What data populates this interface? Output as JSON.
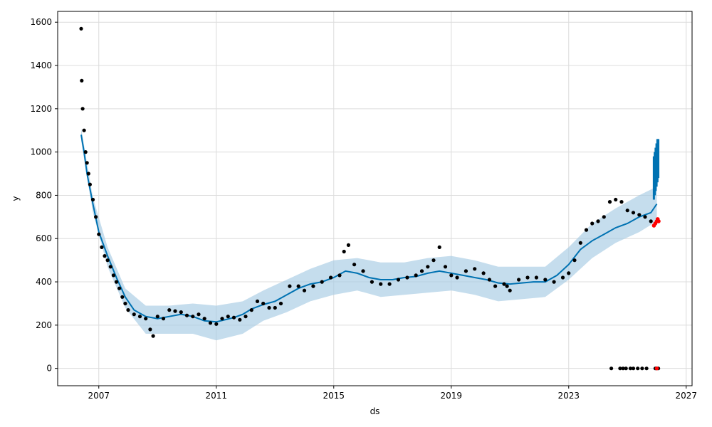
{
  "chart_data": {
    "type": "line",
    "title": "",
    "xlabel": "ds",
    "ylabel": "y",
    "xlim": [
      2005.6,
      2027.2
    ],
    "ylim": [
      -80,
      1650
    ],
    "x_ticks": [
      "2007",
      "2011",
      "2015",
      "2019",
      "2023",
      "2027"
    ],
    "y_ticks": [
      "0",
      "200",
      "400",
      "600",
      "800",
      "1000",
      "1200",
      "1400",
      "1600"
    ],
    "grid": true,
    "legend": "none",
    "colors": {
      "observed": "#000000",
      "forecast": "#0072B2",
      "interval": "#a6cbe3",
      "recent_actual": "#ff0000"
    },
    "series": [
      {
        "kind": "forecast_line",
        "x": [
          2006.4,
          2006.5,
          2006.6,
          2006.8,
          2007.0,
          2007.3,
          2007.6,
          2007.9,
          2008.2,
          2008.6,
          2009.0,
          2009.4,
          2009.8,
          2010.2,
          2010.6,
          2011.0,
          2011.3,
          2011.6,
          2011.9,
          2012.2,
          2012.6,
          2013.0,
          2013.4,
          2013.8,
          2014.2,
          2014.6,
          2015.0,
          2015.4,
          2015.8,
          2016.2,
          2016.6,
          2017.0,
          2017.4,
          2017.8,
          2018.2,
          2018.6,
          2019.0,
          2019.4,
          2019.8,
          2020.2,
          2020.6,
          2021.0,
          2021.4,
          2021.8,
          2022.2,
          2022.6,
          2023.0,
          2023.4,
          2023.8,
          2024.2,
          2024.6,
          2025.0,
          2025.4,
          2025.8,
          2026.0
        ],
        "y": [
          1080,
          1000,
          900,
          760,
          630,
          520,
          420,
          330,
          270,
          240,
          230,
          240,
          250,
          240,
          220,
          215,
          225,
          235,
          250,
          275,
          295,
          310,
          340,
          370,
          390,
          400,
          420,
          450,
          440,
          420,
          410,
          410,
          420,
          425,
          440,
          450,
          440,
          430,
          420,
          410,
          395,
          390,
          395,
          400,
          400,
          430,
          480,
          550,
          590,
          620,
          650,
          670,
          700,
          720,
          760
        ]
      },
      {
        "kind": "forecast_upper",
        "x": [
          2006.4,
          2006.8,
          2007.3,
          2007.9,
          2008.6,
          2009.4,
          2010.2,
          2011.0,
          2011.9,
          2012.6,
          2013.4,
          2014.2,
          2015.0,
          2015.8,
          2016.6,
          2017.4,
          2018.2,
          2019.0,
          2019.8,
          2020.6,
          2021.4,
          2022.2,
          2023.0,
          2023.8,
          2024.6,
          2025.4,
          2026.0
        ],
        "y": [
          1110,
          790,
          560,
          370,
          290,
          290,
          300,
          290,
          310,
          360,
          410,
          460,
          500,
          510,
          490,
          490,
          510,
          520,
          500,
          470,
          470,
          470,
          560,
          670,
          740,
          800,
          840
        ]
      },
      {
        "kind": "forecast_lower",
        "x": [
          2006.4,
          2006.8,
          2007.3,
          2007.9,
          2008.6,
          2009.4,
          2010.2,
          2011.0,
          2011.9,
          2012.6,
          2013.4,
          2014.2,
          2015.0,
          2015.8,
          2016.6,
          2017.4,
          2018.2,
          2019.0,
          2019.8,
          2020.6,
          2021.4,
          2022.2,
          2023.0,
          2023.8,
          2024.6,
          2025.4,
          2026.0
        ],
        "y": [
          1050,
          720,
          470,
          280,
          160,
          160,
          160,
          130,
          160,
          220,
          260,
          310,
          340,
          360,
          330,
          340,
          350,
          360,
          340,
          310,
          320,
          330,
          410,
          510,
          580,
          630,
          680
        ]
      },
      {
        "kind": "observed_points",
        "x": [
          2006.4,
          2006.42,
          2006.45,
          2006.5,
          2006.55,
          2006.6,
          2006.65,
          2006.7,
          2006.8,
          2006.9,
          2007.0,
          2007.1,
          2007.2,
          2007.3,
          2007.4,
          2007.5,
          2007.6,
          2007.7,
          2007.8,
          2007.9,
          2008.0,
          2008.2,
          2008.4,
          2008.6,
          2008.75,
          2008.85,
          2009.0,
          2009.2,
          2009.4,
          2009.6,
          2009.8,
          2010.0,
          2010.2,
          2010.4,
          2010.6,
          2010.8,
          2011.0,
          2011.2,
          2011.4,
          2011.6,
          2011.8,
          2012.0,
          2012.2,
          2012.4,
          2012.6,
          2012.8,
          2013.0,
          2013.2,
          2013.5,
          2013.8,
          2014.0,
          2014.3,
          2014.6,
          2014.9,
          2015.2,
          2015.35,
          2015.5,
          2015.7,
          2016.0,
          2016.3,
          2016.6,
          2016.9,
          2017.2,
          2017.5,
          2017.8,
          2018.0,
          2018.2,
          2018.4,
          2018.6,
          2018.8,
          2019.0,
          2019.2,
          2019.5,
          2019.8,
          2020.1,
          2020.3,
          2020.5,
          2020.8,
          2020.9,
          2021.0,
          2021.3,
          2021.6,
          2021.9,
          2022.2,
          2022.5,
          2022.8,
          2023.0,
          2023.2,
          2023.4,
          2023.6,
          2023.8,
          2024.0,
          2024.2,
          2024.4,
          2024.6,
          2024.8,
          2025.0,
          2025.2,
          2025.4,
          2025.6,
          2025.8,
          2024.45,
          2024.75,
          2024.85,
          2024.95,
          2025.1,
          2025.2,
          2025.35,
          2025.5,
          2025.65,
          2025.95,
          2026.05
        ],
        "y": [
          1570,
          1330,
          1200,
          1100,
          1000,
          950,
          900,
          850,
          780,
          700,
          620,
          560,
          520,
          500,
          470,
          430,
          400,
          370,
          330,
          300,
          270,
          250,
          240,
          230,
          180,
          150,
          240,
          230,
          270,
          265,
          260,
          245,
          240,
          250,
          230,
          210,
          205,
          230,
          240,
          235,
          225,
          240,
          270,
          310,
          300,
          280,
          280,
          300,
          380,
          380,
          360,
          380,
          400,
          420,
          430,
          540,
          570,
          480,
          450,
          400,
          390,
          390,
          410,
          420,
          430,
          450,
          470,
          500,
          560,
          470,
          430,
          420,
          450,
          460,
          440,
          410,
          380,
          390,
          380,
          360,
          410,
          420,
          420,
          410,
          400,
          420,
          440,
          500,
          580,
          640,
          670,
          680,
          700,
          770,
          780,
          770,
          730,
          720,
          710,
          700,
          680,
          0,
          0,
          0,
          0,
          0,
          0,
          0,
          0,
          0,
          0,
          0
        ]
      },
      {
        "kind": "recent_points",
        "x": [
          2025.9,
          2025.95,
          2026.0,
          2026.03,
          2026.06,
          2026.0
        ],
        "y": [
          660,
          670,
          680,
          690,
          680,
          0
        ]
      },
      {
        "kind": "forecast_tail",
        "x": [
          2025.9,
          2025.93,
          2025.96,
          2025.99,
          2026.02,
          2026.05
        ],
        "low": [
          780,
          800,
          820,
          840,
          860,
          880
        ],
        "high": [
          980,
          1000,
          1020,
          1040,
          1060,
          1060
        ]
      }
    ]
  }
}
